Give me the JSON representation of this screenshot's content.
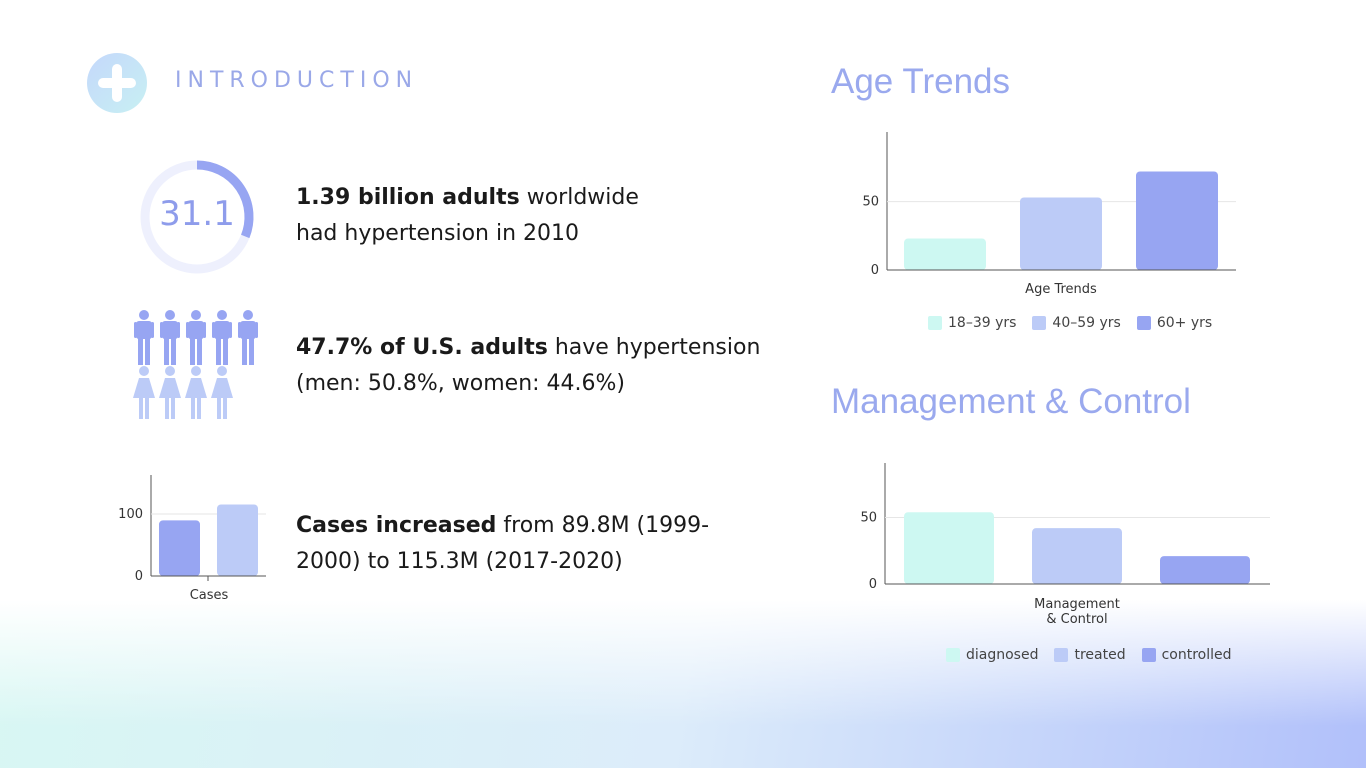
{
  "header": {
    "section_label": "INTRODUCTION",
    "logo_icon": "plus-icon"
  },
  "facts": {
    "stat_value": "31.1",
    "f1_bold": "1.39 billion adults",
    "f1_rest": "worldwide",
    "f1_line2": "had hypertension in 2010",
    "f2_bold": "47.7% of U.S. adults",
    "f2_rest": "have hypertension",
    "f2_line2": "(men: 50.8%, women: 44.6%)",
    "f3_bold": "Cases increased",
    "f3_rest": "from 89.8M (1999-",
    "f3_line2": "2000) to 115.3M (2017-2020)"
  },
  "colors": {
    "teal": "#cdf8f2",
    "lavender": "#bccbf7",
    "periwinkle": "#97a5f2",
    "accent": "#9aa9ee"
  },
  "chart_data": [
    {
      "id": "cases",
      "type": "bar",
      "xlabel": "Cases",
      "ylim": [
        0,
        150
      ],
      "yticks": [
        0,
        100
      ],
      "series": [
        {
          "values": [
            89.8
          ],
          "color": "#97a5f2"
        },
        {
          "values": [
            115.3
          ],
          "color": "#bccbf7"
        }
      ]
    },
    {
      "id": "age",
      "type": "bar",
      "title": "Age Trends",
      "xlabel": "Age Trends",
      "ylim": [
        0,
        95
      ],
      "yticks": [
        0,
        50
      ],
      "series": [
        {
          "name": "18–39 yrs",
          "values": [
            23
          ],
          "color": "#cdf8f2"
        },
        {
          "name": "40–59 yrs",
          "values": [
            53
          ],
          "color": "#bccbf7"
        },
        {
          "name": "60+ yrs",
          "values": [
            72
          ],
          "color": "#97a5f2"
        }
      ],
      "legend": "bottom"
    },
    {
      "id": "mgmt",
      "type": "bar",
      "title": "Management & Control",
      "xlabel_lines": [
        "Management",
        "& Control"
      ],
      "ylim": [
        0,
        85
      ],
      "yticks": [
        0,
        50
      ],
      "series": [
        {
          "name": "diagnosed",
          "values": [
            54
          ],
          "color": "#cdf8f2"
        },
        {
          "name": "treated",
          "values": [
            42
          ],
          "color": "#bccbf7"
        },
        {
          "name": "controlled",
          "values": [
            21
          ],
          "color": "#97a5f2"
        }
      ],
      "legend": "bottom"
    }
  ]
}
